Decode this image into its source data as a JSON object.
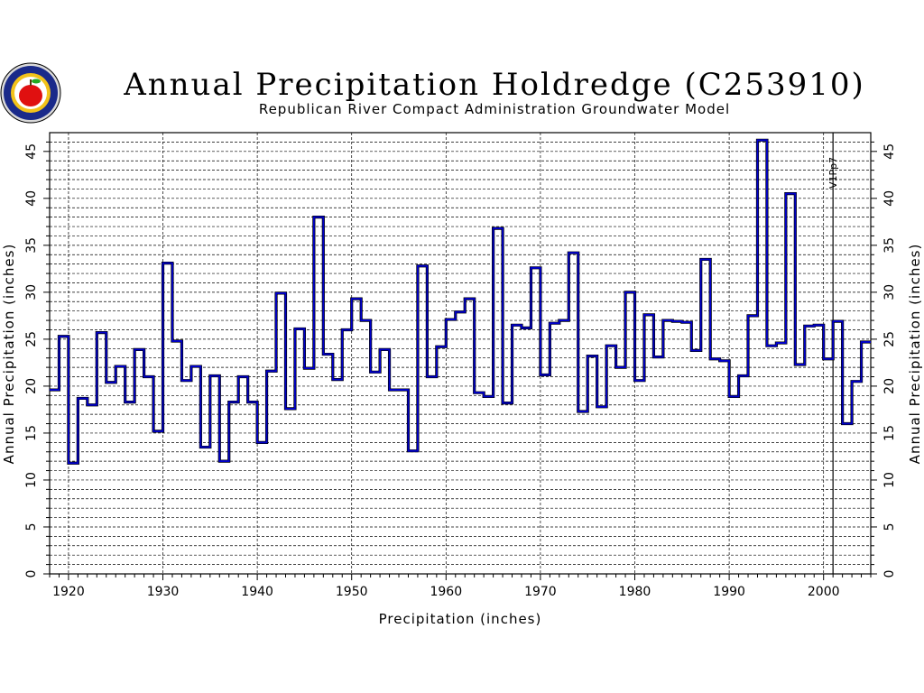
{
  "chart_data": {
    "type": "line",
    "step": true,
    "title": "Annual Precipitation Holdredge (C253910)",
    "subtitle": "Republican River Compact Administration Groundwater Model",
    "xlabel": "Precipitation (inches)",
    "ylabel": "Annual Precipitation (inches)",
    "ylabel_right": "Annual Precipitation (inches)",
    "xlim": [
      1918,
      2005
    ],
    "ylim": [
      0,
      47
    ],
    "x_ticks": [
      1920,
      1930,
      1940,
      1950,
      1960,
      1970,
      1980,
      1990,
      2000
    ],
    "y_ticks": [
      0,
      5,
      10,
      15,
      20,
      25,
      30,
      35,
      40,
      45
    ],
    "grid": true,
    "annotations": [
      {
        "x": 2001,
        "text": "V1Pp7"
      }
    ],
    "line_color": "#0000cc",
    "series": [
      {
        "x": [
          1918,
          1919,
          1920,
          1921,
          1922,
          1923,
          1924,
          1925,
          1926,
          1927,
          1928,
          1929,
          1930,
          1931,
          1932,
          1933,
          1934,
          1935,
          1936,
          1937,
          1938,
          1939,
          1940,
          1941,
          1942,
          1943,
          1944,
          1945,
          1946,
          1947,
          1948,
          1949,
          1950,
          1951,
          1952,
          1953,
          1954,
          1955,
          1956,
          1957,
          1958,
          1959,
          1960,
          1961,
          1962,
          1963,
          1964,
          1965,
          1966,
          1967,
          1968,
          1969,
          1970,
          1971,
          1972,
          1973,
          1974,
          1975,
          1976,
          1977,
          1978,
          1979,
          1980,
          1981,
          1982,
          1983,
          1984,
          1985,
          1986,
          1987,
          1988,
          1989,
          1990,
          1991,
          1992,
          1993,
          1994,
          1995,
          1996,
          1997,
          1998,
          1999,
          2000,
          2001,
          2002,
          2003,
          2004
        ],
        "values": [
          19.6,
          25.3,
          11.8,
          18.7,
          18.0,
          25.7,
          20.4,
          22.1,
          18.3,
          23.9,
          21.0,
          15.2,
          33.1,
          24.8,
          20.6,
          22.1,
          13.5,
          21.1,
          12.0,
          18.3,
          21.0,
          18.3,
          14.0,
          21.6,
          29.9,
          17.6,
          26.1,
          21.9,
          38.0,
          23.4,
          20.7,
          26.0,
          29.3,
          27.0,
          21.5,
          23.9,
          19.6,
          19.6,
          13.1,
          32.8,
          21.0,
          24.2,
          27.1,
          27.9,
          29.3,
          19.3,
          18.9,
          36.8,
          18.2,
          26.5,
          26.2,
          32.6,
          21.2,
          26.7,
          27.0,
          34.2,
          17.3,
          23.2,
          17.8,
          24.3,
          22.0,
          30.0,
          20.6,
          27.6,
          23.1,
          27.0,
          26.9,
          26.8,
          23.8,
          33.5,
          22.9,
          22.7,
          18.9,
          21.1,
          27.5,
          46.2,
          24.3,
          24.6,
          40.5,
          22.3,
          26.4,
          26.5,
          22.9,
          26.9,
          16.0,
          20.5,
          24.7
        ]
      }
    ]
  }
}
